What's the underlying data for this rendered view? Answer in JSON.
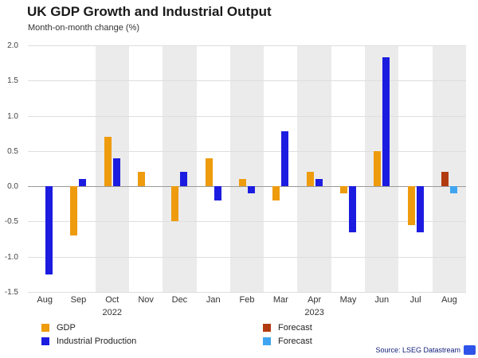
{
  "title": "UK GDP Growth and Industrial Output",
  "subtitle": "Month-on-month change (%)",
  "source": "Source: LSEG Datastream",
  "colors": {
    "gdp": "#EE9B0D",
    "industrial": "#1C1CE0",
    "gdp_forecast": "#B23A10",
    "industrial_forecast": "#3FA5F0"
  },
  "chart_data": {
    "type": "bar",
    "title": "UK GDP Growth and Industrial Output",
    "subtitle": "Month-on-month change (%)",
    "categories": [
      "Aug",
      "Sep",
      "Oct",
      "Nov",
      "Dec",
      "Jan",
      "Feb",
      "Mar",
      "Apr",
      "May",
      "Jun",
      "Jul",
      "Aug"
    ],
    "year_labels": [
      {
        "index": 2,
        "label": "2022"
      },
      {
        "index": 8,
        "label": "2023"
      }
    ],
    "series": [
      {
        "name": "GDP",
        "color_key": "gdp",
        "slot": 0,
        "values": [
          0,
          -0.7,
          0.7,
          0.2,
          -0.5,
          0.4,
          0.1,
          -0.2,
          0.2,
          -0.1,
          0.5,
          -0.55,
          null
        ]
      },
      {
        "name": "Industrial Production",
        "color_key": "industrial",
        "slot": 1,
        "values": [
          -1.25,
          0.1,
          0.4,
          0,
          0.2,
          -0.2,
          -0.1,
          0.78,
          0.1,
          -0.65,
          1.83,
          -0.65,
          null
        ]
      },
      {
        "name": "Forecast",
        "color_key": "gdp_forecast",
        "slot": 0,
        "values": [
          null,
          null,
          null,
          null,
          null,
          null,
          null,
          null,
          null,
          null,
          null,
          null,
          0.2
        ]
      },
      {
        "name": "Forecast",
        "color_key": "industrial_forecast",
        "slot": 1,
        "values": [
          null,
          null,
          null,
          null,
          null,
          null,
          null,
          null,
          null,
          null,
          null,
          null,
          -0.1
        ]
      }
    ],
    "ylim": [
      -1.5,
      2.0
    ],
    "yticks": [
      2.0,
      1.5,
      1.0,
      0.5,
      0.0,
      -0.5,
      -1.0,
      -1.5
    ],
    "striped_months": [
      2,
      4,
      6,
      8,
      10,
      12
    ],
    "grid": true,
    "legend_position": "bottom"
  },
  "legend": [
    {
      "label": "GDP",
      "color_key": "gdp"
    },
    {
      "label": "Industrial Production",
      "color_key": "industrial"
    },
    {
      "label": "Forecast",
      "color_key": "gdp_forecast"
    },
    {
      "label": "Forecast",
      "color_key": "industrial_forecast"
    }
  ]
}
